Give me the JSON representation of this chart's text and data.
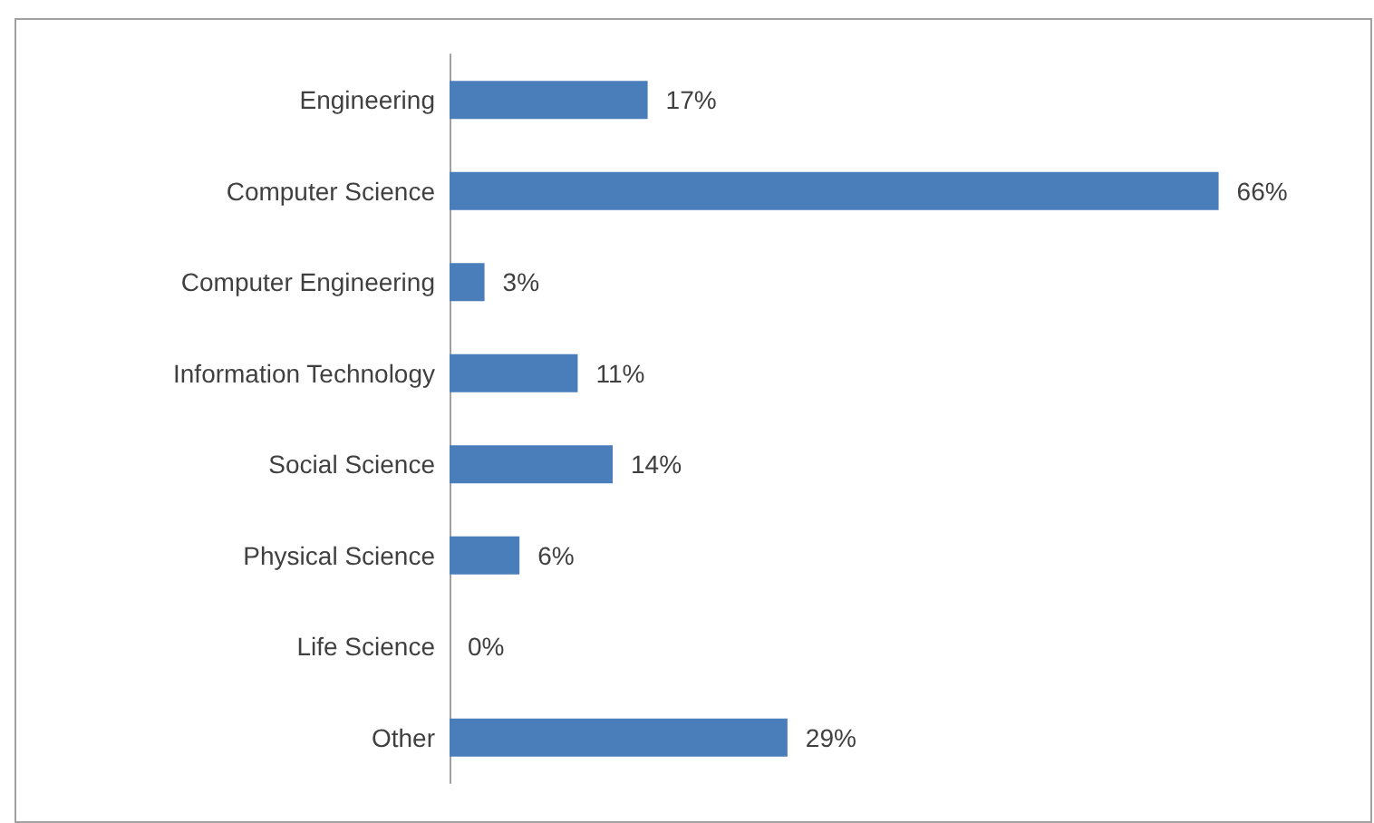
{
  "chart_data": {
    "type": "bar",
    "orientation": "horizontal",
    "categories": [
      "Engineering",
      "Computer Science",
      "Computer Engineering",
      "Information Technology",
      "Social Science",
      "Physical Science",
      "Life Science",
      "Other"
    ],
    "values": [
      17,
      66,
      3,
      11,
      14,
      6,
      0,
      29
    ],
    "value_labels": [
      "17%",
      "66%",
      "3%",
      "11%",
      "14%",
      "6%",
      "0%",
      "29%"
    ],
    "color": "#4a7ebb"
  }
}
